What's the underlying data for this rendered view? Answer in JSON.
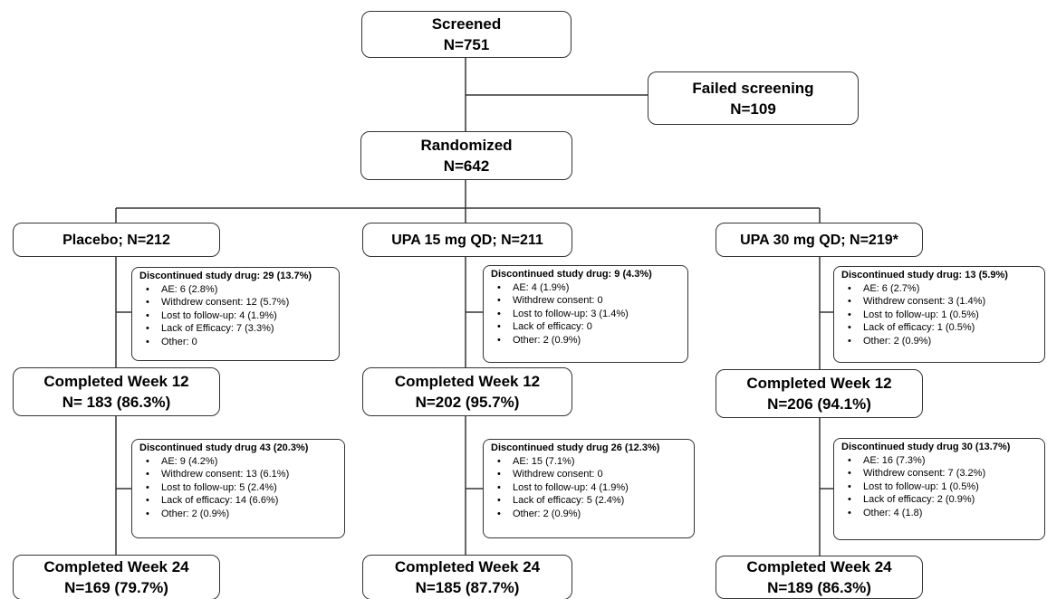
{
  "screened": {
    "title": "Screened",
    "n": "N=751"
  },
  "failed": {
    "title": "Failed screening",
    "n": "N=109"
  },
  "randomized": {
    "title": "Randomized",
    "n": "N=642"
  },
  "arms": [
    {
      "label": "Placebo; N=212",
      "disc12": {
        "title": "Discontinued study drug: 29 (13.7%)",
        "items": [
          "AE: 6 (2.8%)",
          "Withdrew consent: 12 (5.7%)",
          "Lost to follow-up: 4 (1.9%)",
          "Lack of Efficacy: 7 (3.3%)",
          "Other: 0"
        ]
      },
      "wk12": {
        "title": "Completed Week 12",
        "n": "N= 183 (86.3%)"
      },
      "disc24": {
        "title": "Discontinued study drug 43 (20.3%)",
        "items": [
          "AE: 9 (4.2%)",
          "Withdrew consent: 13 (6.1%)",
          "Lost to follow-up: 5 (2.4%)",
          "Lack of efficacy: 14 (6.6%)",
          "Other: 2 (0.9%)"
        ]
      },
      "wk24": {
        "title": "Completed Week 24",
        "n": "N=169 (79.7%)"
      }
    },
    {
      "label": "UPA 15 mg QD; N=211",
      "disc12": {
        "title": "Discontinued study drug: 9 (4.3%)",
        "items": [
          "AE: 4 (1.9%)",
          "Withdrew consent: 0",
          "Lost to follow-up: 3 (1.4%)",
          "Lack of efficacy: 0",
          "Other: 2 (0.9%)"
        ]
      },
      "wk12": {
        "title": "Completed Week 12",
        "n": "N=202 (95.7%)"
      },
      "disc24": {
        "title": "Discontinued study drug 26 (12.3%)",
        "items": [
          "AE: 15 (7.1%)",
          "Withdrew consent: 0",
          "Lost to follow-up: 4 (1.9%)",
          "Lack of efficacy: 5 (2.4%)",
          "Other: 2 (0.9%)"
        ]
      },
      "wk24": {
        "title": "Completed Week 24",
        "n": "N=185 (87.7%)"
      }
    },
    {
      "label": "UPA 30 mg QD; N=219*",
      "disc12": {
        "title": "Discontinued study drug: 13 (5.9%)",
        "items": [
          "AE: 6 (2.7%)",
          "Withdrew consent: 3 (1.4%)",
          "Lost to follow-up: 1 (0.5%)",
          "Lack of efficacy: 1 (0.5%)",
          "Other: 2 (0.9%)"
        ]
      },
      "wk12": {
        "title": "Completed Week 12",
        "n": "N=206 (94.1%)"
      },
      "disc24": {
        "title": "Discontinued study drug 30 (13.7%)",
        "items": [
          "AE: 16 (7.3%)",
          "Withdrew consent: 7 (3.2%)",
          "Lost to follow-up: 1 (0.5%)",
          "Lack of efficacy: 2 (0.9%)",
          "Other: 4 (1.8)"
        ]
      },
      "wk24": {
        "title": "Completed Week 24",
        "n": "N=189 (86.3%)"
      }
    }
  ]
}
